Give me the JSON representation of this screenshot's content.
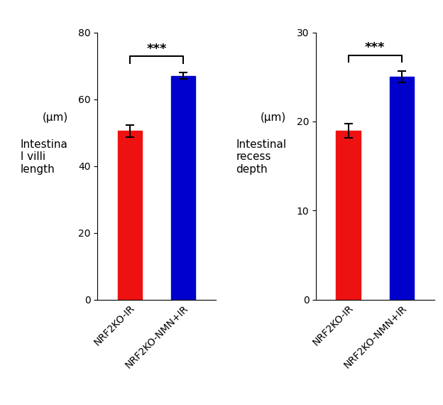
{
  "chart_data": [
    {
      "type": "bar",
      "categories": [
        "NRF2KO-IR",
        "NRF2KO-NMN+IR"
      ],
      "values": [
        50.5,
        67.0
      ],
      "errors": [
        1.8,
        1.0
      ],
      "colors": [
        "#ee1111",
        "#0000cc"
      ],
      "ylim": [
        0,
        80
      ],
      "yticks": [
        0,
        20,
        40,
        60,
        80
      ],
      "annotations": [
        {
          "text": "(μm)"
        },
        {
          "text": "Intestina\nl villi\nlength"
        },
        {
          "text": "***",
          "between": [
            "NRF2KO-IR",
            "NRF2KO-NMN+IR"
          ]
        }
      ]
    },
    {
      "type": "bar",
      "categories": [
        "NRF2KO-IR",
        "NRF2KO-NMN+IR"
      ],
      "values": [
        19.0,
        25.0
      ],
      "errors": [
        0.8,
        0.65
      ],
      "colors": [
        "#ee1111",
        "#0000cc"
      ],
      "ylim": [
        0,
        30
      ],
      "yticks": [
        0,
        10,
        20,
        30
      ],
      "annotations": [
        {
          "text": "(μm)"
        },
        {
          "text": "Intestinal\nrecess\ndepth"
        },
        {
          "text": "***",
          "between": [
            "NRF2KO-IR",
            "NRF2KO-NMN+IR"
          ]
        }
      ]
    }
  ]
}
